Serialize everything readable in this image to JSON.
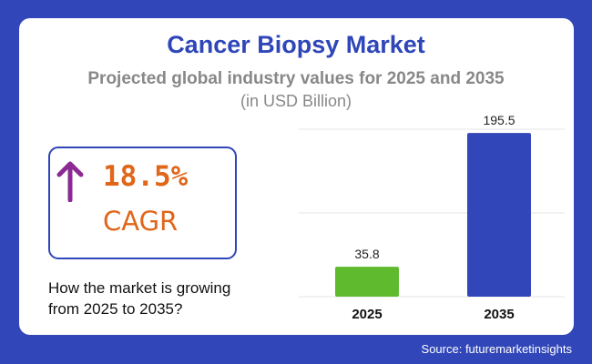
{
  "header": {
    "title": "Cancer Biopsy Market",
    "subtitle": "Projected global industry values for 2025 and 2035",
    "unit": "(in USD Billion)"
  },
  "cagr": {
    "value": "18.5%",
    "label": "CAGR",
    "icon": "arrow-up-icon",
    "icon_color": "#8b2a93",
    "text_color": "#e0661a"
  },
  "question": "How the market is growing from 2025 to 2035?",
  "source": "Source: futuremarketinsights",
  "chart_data": {
    "type": "bar",
    "categories": [
      "2025",
      "2035"
    ],
    "values": [
      35.8,
      195.5
    ],
    "data_labels": [
      "35.8",
      "195.5"
    ],
    "colors": [
      "#5fba2e",
      "#3146b8"
    ],
    "ylim": [
      0,
      200
    ],
    "grid": true,
    "xlabel": "",
    "ylabel": ""
  }
}
